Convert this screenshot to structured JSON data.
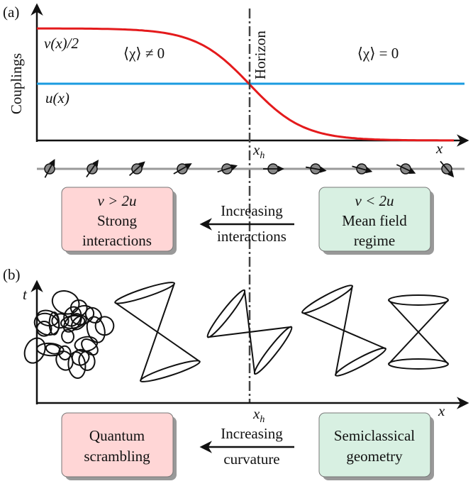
{
  "panel_a": {
    "label": "(a)",
    "y_axis_label": "Couplings",
    "curve_labels": [
      "v(x)/2",
      "u(x)"
    ],
    "phase_labels": [
      "⟨χ⟩ ≠ 0",
      "⟨χ⟩ = 0"
    ],
    "horizon_label": "Horizon",
    "horizon_position": {
      "base": "x",
      "sub": "h"
    },
    "x_axis_label": "x",
    "left_box": [
      "v > 2u",
      "Strong",
      "interactions"
    ],
    "arrow_label": [
      "Increasing",
      "interactions"
    ],
    "right_box": [
      "v < 2u",
      "Mean field",
      "regime"
    ]
  },
  "panel_b": {
    "label": "(b)",
    "y_axis_label": "t",
    "horizon_position": {
      "base": "x",
      "sub": "h"
    },
    "x_axis_label": "x",
    "left_box": [
      "Quantum",
      "scrambling"
    ],
    "arrow_label": [
      "Increasing",
      "curvature"
    ],
    "right_box": [
      "Semiclassical",
      "geometry"
    ]
  }
}
